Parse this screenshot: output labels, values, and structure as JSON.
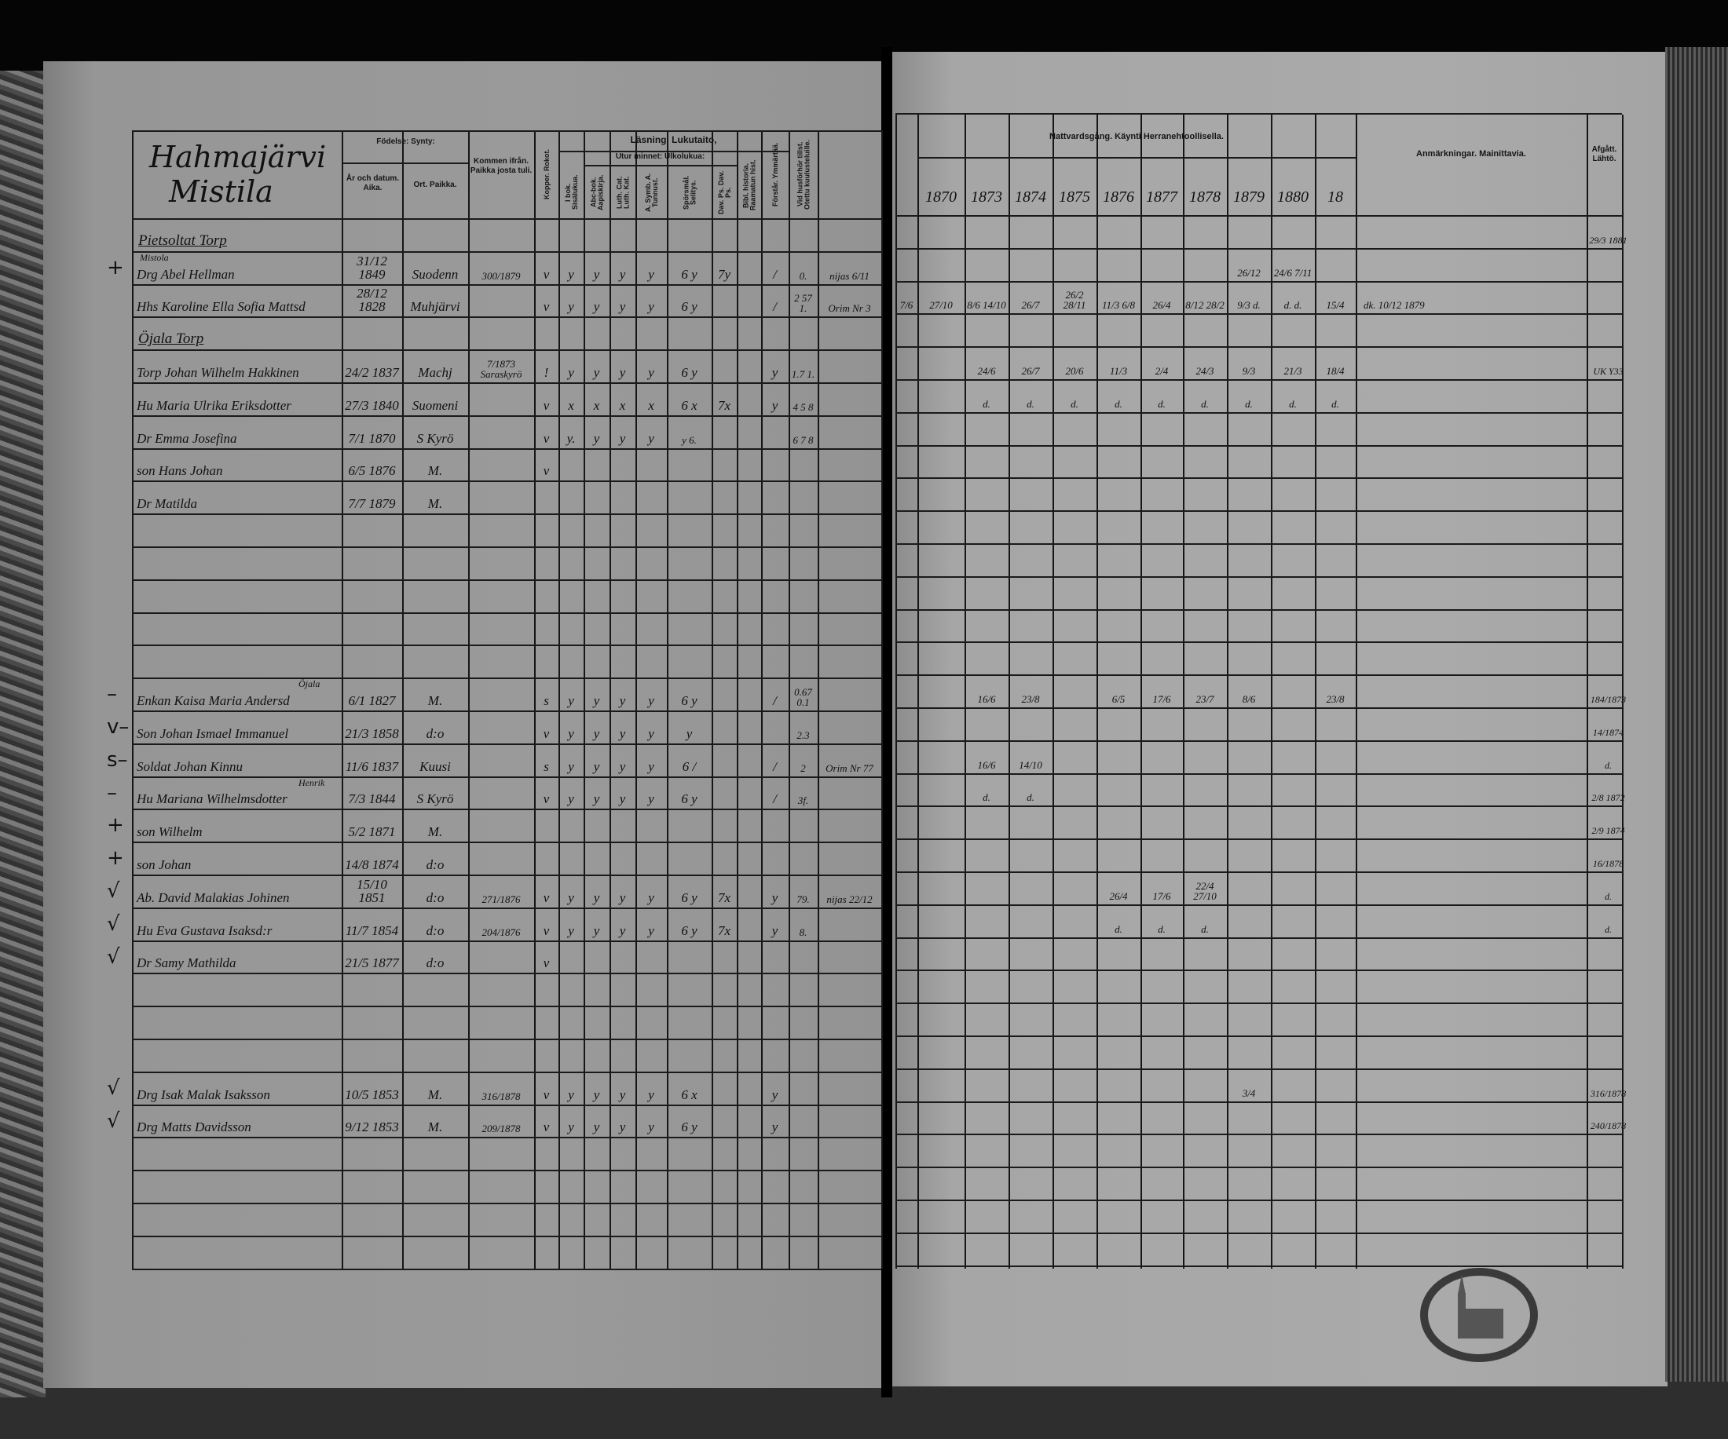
{
  "left_page": {
    "title_line1": "Hahmajärvi",
    "title_line2": "Mistila",
    "headers": {
      "fodelse": "Födelse: Synty:",
      "ar": "År och datum. Aika.",
      "ort": "Ort. Paikka.",
      "kommen": "Kommen ifrån. Paikka josta tuli.",
      "kopper": "Kopper. Rokot.",
      "lasning": "Läsning, Lukutaito,",
      "utur_minnet": "Utur minnet: Ulkolukua:",
      "ibok": "I bok. Sisälukua.",
      "abc": "Abc-bok. Aapiskirja.",
      "luth": "Luth. Cat. Luth. Kat.",
      "asymb": "A. Symb. A. Tunnust.",
      "spors": "Spörsmål. Selitys.",
      "davps": "Dav. Ps. Dav. Ps.",
      "bibl": "Bibl. historia. Raamatun hist.",
      "forst": "Förstår. Ymmärtää.",
      "vid": "Vid husförhör tillst. Otettu kuulusteluille."
    }
  },
  "right_page": {
    "headers": {
      "nattvard": "Nattvardsgång. Käynti Herranehtoollisella.",
      "years": [
        "1870",
        "1873",
        "1874",
        "1875",
        "1876",
        "1877",
        "1878",
        "1879",
        "1880",
        "18"
      ],
      "anmarkningar": "Anmärkningar. Mainittavia.",
      "afgatt": "Afgått. Lähtö."
    }
  },
  "rows": [
    {
      "section": "Pietsoltat Torp",
      "afgatt": "29/3 1881"
    },
    {
      "margin": "+",
      "note": "Mistola",
      "name": "Drg Abel Hellman",
      "born": "31/12 1849",
      "place": "Suodenn",
      "from": "300/1879",
      "kopper": "v",
      "ibok": "y",
      "abc": "y",
      "luth": "y",
      "asymb": "y",
      "spors": "6 y",
      "davps": "7y",
      "forst": "/",
      "vid": "0.",
      "extra": "nijas 6/11",
      "comm": [
        "",
        "",
        "",
        "",
        "",
        "",
        "",
        "26/12",
        "24/6 7/11",
        ""
      ]
    },
    {
      "name": "Hhs Karoline Ella Sofia Mattsd",
      "born": "28/12 1828",
      "place": "Muhjärvi",
      "kopper": "v",
      "ibok": "y",
      "abc": "y",
      "luth": "y",
      "asymb": "y",
      "spors": "6 y",
      "forst": "/",
      "vid": "2 57 1.",
      "extra": "Orim Nr 3",
      "mark": "7/6",
      "comm": [
        "27/10",
        "8/6 14/10",
        "26/7",
        "26/2 28/11",
        "11/3 6/8",
        "26/4",
        "8/12 28/2",
        "9/3 d.",
        "d. d.",
        "15/4"
      ],
      "remarks": "dk. 10/12 1879"
    },
    {
      "section": "Öjala Torp"
    },
    {
      "name": "Torp Johan Wilhelm Hakkinen",
      "born": "24/2 1837",
      "place": "Machj",
      "from": "7/1873 Saraskyrö",
      "kopper": "!",
      "ibok": "y",
      "abc": "y",
      "luth": "y",
      "asymb": "y",
      "spors": "6 y",
      "forst": "y",
      "vid": "1.7 1.",
      "comm": [
        "",
        "24/6",
        "26/7",
        "20/6",
        "11/3",
        "2/4",
        "24/3",
        "9/3",
        "21/3",
        "18/4"
      ],
      "afgatt": "UK Y33"
    },
    {
      "name": "Hu Maria Ulrika Eriksdotter",
      "born": "27/3 1840",
      "place": "Suomeni",
      "kopper": "v",
      "ibok": "x",
      "abc": "x",
      "luth": "x",
      "asymb": "x",
      "spors": "6 x",
      "davps": "7x",
      "forst": "y",
      "vid": "4 5 8",
      "comm": [
        "",
        "d.",
        "d.",
        "d.",
        "d.",
        "d.",
        "d.",
        "d.",
        "d.",
        "d."
      ]
    },
    {
      "name": "Dr Emma Josefina",
      "born": "7/1 1870",
      "place": "S Kyrö",
      "kopper": "v",
      "ibok": "y.",
      "abc": "y",
      "luth": "y",
      "asymb": "y",
      "spors": "y 6.",
      "vid": "6 7 8"
    },
    {
      "name": "son Hans Johan",
      "born": "6/5 1876",
      "place": "M.",
      "kopper": "v"
    },
    {
      "name": "Dr Matilda",
      "born": "7/7 1879",
      "place": "M."
    },
    {},
    {},
    {},
    {},
    {},
    {
      "margin": "–",
      "note": "Öjala",
      "name": "Enkan Kaisa Maria Andersd",
      "born": "6/1 1827",
      "place": "M.",
      "kopper": "s",
      "ibok": "y",
      "abc": "y",
      "luth": "y",
      "asymb": "y",
      "spors": "6 y",
      "forst": "/",
      "vid": "0.67 0.1",
      "comm": [
        "",
        "16/6",
        "23/8",
        "",
        "6/5",
        "17/6",
        "23/7",
        "8/6",
        "",
        "23/8"
      ],
      "afgatt": "184/1873"
    },
    {
      "margin": "v–",
      "name": "Son Johan Ismael Immanuel",
      "born": "21/3 1858",
      "place": "d:o",
      "kopper": "v",
      "ibok": "y",
      "abc": "y",
      "luth": "y",
      "asymb": "y",
      "spors": "y",
      "vid": "2.3",
      "afgatt": "14/1874"
    },
    {
      "margin": "s–",
      "name": "Soldat Johan Kinnu",
      "born": "11/6 1837",
      "place": "Kuusi",
      "kopper": "s",
      "ibok": "y",
      "abc": "y",
      "luth": "y",
      "asymb": "y",
      "spors": "6 /",
      "forst": "/",
      "vid": "2",
      "extra": "Orim Nr 77",
      "comm": [
        "",
        "16/6",
        "14/10",
        "",
        "",
        "",
        "",
        "",
        "",
        ""
      ],
      "afgatt": "d."
    },
    {
      "margin": "–",
      "note": "Henrik",
      "name": "Hu Mariana Wilhelmsdotter",
      "born": "7/3 1844",
      "place": "S Kyrö",
      "kopper": "v",
      "ibok": "y",
      "abc": "y",
      "luth": "y",
      "asymb": "y",
      "spors": "6 y",
      "forst": "/",
      "vid": "3f.",
      "comm": [
        "",
        "d.",
        "d.",
        "",
        "",
        "",
        "",
        "",
        "",
        ""
      ],
      "afgatt": "2/8 1872"
    },
    {
      "margin": "+",
      "name": "son Wilhelm",
      "born": "5/2 1871",
      "place": "M.",
      "afgatt": "2/9 1874"
    },
    {
      "margin": "+",
      "name": "son Johan",
      "born": "14/8 1874",
      "place": "d:o",
      "afgatt": "16/1878"
    },
    {
      "margin": "√",
      "name": "Ab. David Malakias Johinen",
      "born": "15/10 1851",
      "place": "d:o",
      "from": "271/1876",
      "kopper": "v",
      "ibok": "y",
      "abc": "y",
      "luth": "y",
      "asymb": "y",
      "spors": "6 y",
      "davps": "7x",
      "forst": "y",
      "vid": "79.",
      "extra": "nijas 22/12",
      "comm": [
        "",
        "",
        "",
        "",
        "26/4",
        "17/6",
        "22/4 27/10",
        "",
        "",
        ""
      ],
      "afgatt": "d."
    },
    {
      "margin": "√",
      "name": "Hu Eva Gustava Isaksd:r",
      "born": "11/7 1854",
      "place": "d:o",
      "from": "204/1876",
      "kopper": "v",
      "ibok": "y",
      "abc": "y",
      "luth": "y",
      "asymb": "y",
      "spors": "6 y",
      "davps": "7x",
      "forst": "y",
      "vid": "8.",
      "comm": [
        "",
        "",
        "",
        "",
        "d.",
        "d.",
        "d.",
        "",
        "",
        ""
      ],
      "afgatt": "d."
    },
    {
      "margin": "√",
      "name": "Dr Samy Mathilda",
      "born": "21/5 1877",
      "place": "d:o",
      "kopper": "v"
    },
    {},
    {},
    {},
    {
      "margin": "√",
      "name": "Drg Isak Malak Isaksson",
      "born": "10/5 1853",
      "place": "M.",
      "from": "316/1878",
      "kopper": "v",
      "ibok": "y",
      "abc": "y",
      "luth": "y",
      "asymb": "y",
      "spors": "6 x",
      "forst": "y",
      "comm": [
        "",
        "",
        "",
        "",
        "",
        "",
        "",
        "3/4",
        "",
        ""
      ],
      "afgatt": "316/1878"
    },
    {
      "margin": "√",
      "name": "Drg Matts Davidsson",
      "born": "9/12 1853",
      "place": "M.",
      "from": "209/1878",
      "kopper": "v",
      "ibok": "y",
      "abc": "y",
      "luth": "y",
      "asymb": "y",
      "spors": "6 y",
      "forst": "y",
      "afgatt": "240/1878"
    },
    {},
    {},
    {},
    {}
  ],
  "colors": {
    "page": "#9a9a9a",
    "ink": "#111111",
    "background": "#050505"
  }
}
